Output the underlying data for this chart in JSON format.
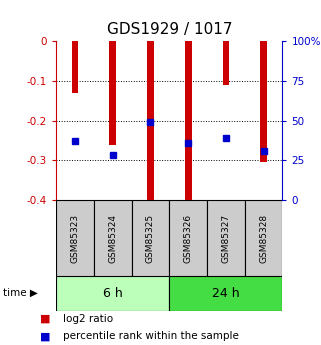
{
  "title": "GDS1929 / 1017",
  "samples": [
    "GSM85323",
    "GSM85324",
    "GSM85325",
    "GSM85326",
    "GSM85327",
    "GSM85328"
  ],
  "log2_ratios": [
    -0.13,
    -0.26,
    -0.4,
    -0.4,
    -0.11,
    -0.305
  ],
  "percentile_ranks": [
    0.37,
    0.285,
    0.49,
    0.36,
    0.39,
    0.31
  ],
  "ylim_left": [
    -0.4,
    0.0
  ],
  "ylim_right": [
    0.0,
    1.0
  ],
  "yticks_left": [
    0.0,
    -0.1,
    -0.2,
    -0.3,
    -0.4
  ],
  "yticks_right_vals": [
    0.0,
    0.25,
    0.5,
    0.75,
    1.0
  ],
  "yticks_right_labels": [
    "0",
    "25",
    "50",
    "75",
    "100%"
  ],
  "groups": [
    {
      "label": "6 h",
      "indices": [
        0,
        1,
        2
      ],
      "color": "#bbffbb"
    },
    {
      "label": "24 h",
      "indices": [
        3,
        4,
        5
      ],
      "color": "#44dd44"
    }
  ],
  "bar_color": "#cc0000",
  "marker_color": "#0000cc",
  "bar_width": 0.18,
  "grid_color": "#000000",
  "bg_color": "#ffffff",
  "label_area_color": "#cccccc",
  "time_label": "time",
  "legend_red": "log2 ratio",
  "legend_blue": "percentile rank within the sample",
  "title_fontsize": 11,
  "tick_fontsize": 7.5,
  "legend_fontsize": 7.5,
  "sample_fontsize": 6.5
}
